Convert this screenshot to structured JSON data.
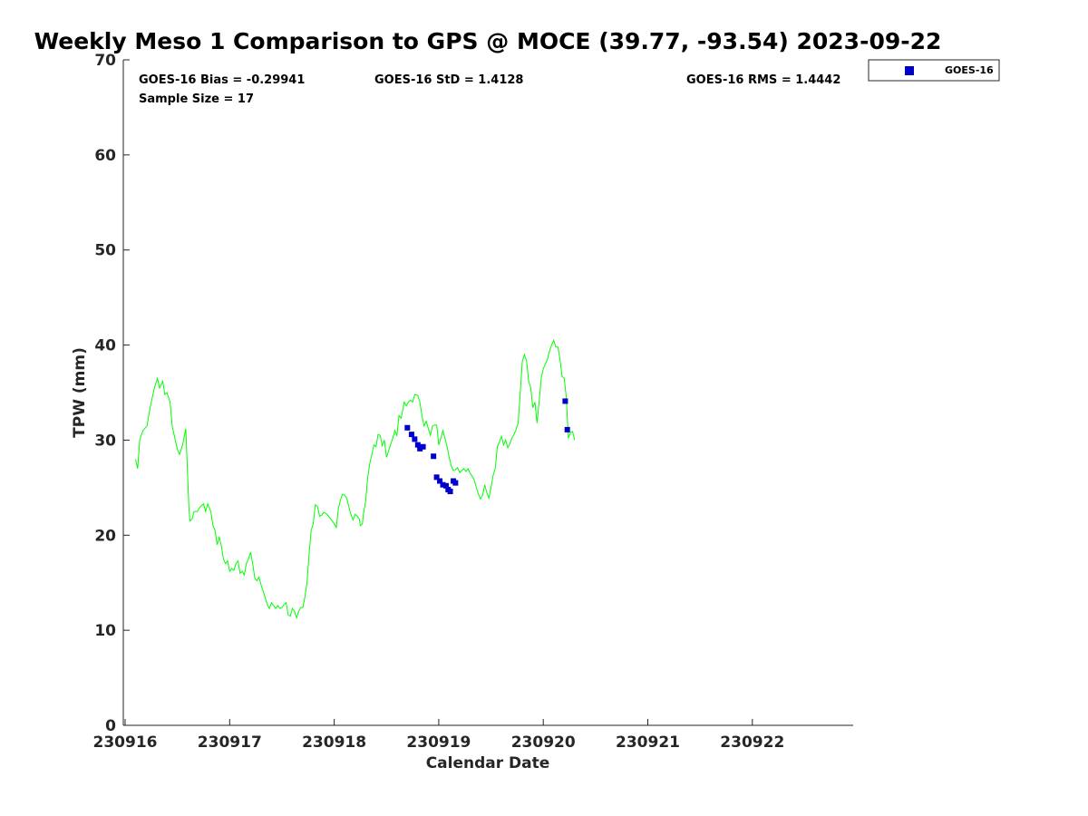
{
  "chart_data": {
    "type": "scatter",
    "title": "Weekly Meso 1 Comparison to GPS @ MOCE (39.77, -93.54) 2023-09-22",
    "xlabel": "Calendar Date",
    "ylabel": "TPW (mm)",
    "xlim": [
      230916,
      230923
    ],
    "ylim": [
      0,
      70
    ],
    "x_ticks": [
      "230916",
      "230917",
      "230918",
      "230919",
      "230920",
      "230921",
      "230922"
    ],
    "y_ticks": [
      "0",
      "10",
      "20",
      "30",
      "40",
      "50",
      "60",
      "70"
    ],
    "grid": false,
    "legend_position": "top-right outside",
    "stats": {
      "bias": "GOES-16 Bias = -0.29941",
      "std": "GOES-16 StD = 1.4128",
      "rms": "GOES-16 RMS = 1.4442",
      "sample": "Sample Size = 17"
    },
    "series": [
      {
        "name": "GPS",
        "kind": "line",
        "color": "#00ff00",
        "points": [
          [
            0.1,
            28.0
          ],
          [
            0.12,
            27.0
          ],
          [
            0.14,
            30.0
          ],
          [
            0.17,
            31.0
          ],
          [
            0.21,
            31.5
          ],
          [
            0.24,
            33.5
          ],
          [
            0.28,
            35.5
          ],
          [
            0.31,
            36.5
          ],
          [
            0.33,
            35.5
          ],
          [
            0.36,
            36.2
          ],
          [
            0.38,
            34.8
          ],
          [
            0.4,
            35.0
          ],
          [
            0.43,
            34.0
          ],
          [
            0.45,
            31.5
          ],
          [
            0.48,
            30.0
          ],
          [
            0.5,
            29.0
          ],
          [
            0.52,
            28.5
          ],
          [
            0.55,
            29.5
          ],
          [
            0.58,
            31.2
          ],
          [
            0.61,
            23.0
          ],
          [
            0.62,
            21.5
          ],
          [
            0.64,
            21.7
          ],
          [
            0.66,
            22.5
          ],
          [
            0.69,
            22.5
          ],
          [
            0.72,
            23.0
          ],
          [
            0.75,
            23.3
          ],
          [
            0.77,
            22.5
          ],
          [
            0.79,
            23.3
          ],
          [
            0.82,
            22.5
          ],
          [
            0.84,
            21.0
          ],
          [
            0.86,
            20.5
          ],
          [
            0.88,
            19.0
          ],
          [
            0.9,
            19.8
          ],
          [
            0.92,
            18.9
          ],
          [
            0.94,
            17.5
          ],
          [
            0.96,
            17.0
          ],
          [
            0.98,
            17.3
          ],
          [
            1.0,
            16.2
          ],
          [
            1.02,
            16.5
          ],
          [
            1.04,
            16.3
          ],
          [
            1.06,
            17.0
          ],
          [
            1.08,
            17.3
          ],
          [
            1.1,
            16.0
          ],
          [
            1.12,
            16.2
          ],
          [
            1.14,
            15.8
          ],
          [
            1.16,
            17.0
          ],
          [
            1.18,
            17.5
          ],
          [
            1.2,
            18.2
          ],
          [
            1.22,
            17.0
          ],
          [
            1.24,
            15.5
          ],
          [
            1.26,
            15.2
          ],
          [
            1.28,
            15.6
          ],
          [
            1.3,
            14.8
          ],
          [
            1.33,
            13.8
          ],
          [
            1.36,
            12.7
          ],
          [
            1.38,
            12.3
          ],
          [
            1.4,
            12.9
          ],
          [
            1.42,
            12.6
          ],
          [
            1.44,
            12.3
          ],
          [
            1.46,
            12.6
          ],
          [
            1.48,
            12.3
          ],
          [
            1.5,
            12.4
          ],
          [
            1.52,
            12.7
          ],
          [
            1.54,
            12.9
          ],
          [
            1.56,
            11.6
          ],
          [
            1.58,
            11.5
          ],
          [
            1.6,
            12.3
          ],
          [
            1.62,
            12.0
          ],
          [
            1.64,
            11.3
          ],
          [
            1.66,
            12.0
          ],
          [
            1.68,
            12.4
          ],
          [
            1.7,
            12.4
          ],
          [
            1.72,
            13.5
          ],
          [
            1.74,
            15.0
          ],
          [
            1.76,
            18.0
          ],
          [
            1.78,
            20.5
          ],
          [
            1.8,
            21.2
          ],
          [
            1.82,
            23.2
          ],
          [
            1.84,
            23.0
          ],
          [
            1.86,
            22.0
          ],
          [
            1.88,
            22.1
          ],
          [
            1.9,
            22.4
          ],
          [
            1.92,
            22.3
          ],
          [
            1.94,
            22.1
          ],
          [
            1.96,
            21.8
          ],
          [
            1.98,
            21.5
          ],
          [
            2.0,
            21.2
          ],
          [
            2.02,
            20.8
          ],
          [
            2.04,
            22.8
          ],
          [
            2.06,
            23.7
          ],
          [
            2.08,
            24.3
          ],
          [
            2.1,
            24.2
          ],
          [
            2.12,
            23.9
          ],
          [
            2.14,
            23.0
          ],
          [
            2.16,
            22.2
          ],
          [
            2.18,
            21.6
          ],
          [
            2.2,
            22.2
          ],
          [
            2.22,
            22.0
          ],
          [
            2.24,
            21.7
          ],
          [
            2.25,
            21.0
          ],
          [
            2.27,
            21.2
          ],
          [
            2.28,
            22.3
          ],
          [
            2.3,
            23.5
          ],
          [
            2.32,
            26.0
          ],
          [
            2.34,
            27.5
          ],
          [
            2.36,
            28.5
          ],
          [
            2.38,
            29.5
          ],
          [
            2.4,
            29.3
          ],
          [
            2.42,
            30.6
          ],
          [
            2.44,
            30.5
          ],
          [
            2.46,
            29.4
          ],
          [
            2.48,
            30.0
          ],
          [
            2.5,
            28.2
          ],
          [
            2.53,
            29.2
          ],
          [
            2.56,
            30.2
          ],
          [
            2.58,
            31.0
          ],
          [
            2.6,
            30.5
          ],
          [
            2.62,
            32.6
          ],
          [
            2.64,
            32.3
          ],
          [
            2.67,
            34.0
          ],
          [
            2.69,
            33.6
          ],
          [
            2.71,
            34.0
          ],
          [
            2.73,
            34.2
          ],
          [
            2.75,
            34.0
          ],
          [
            2.77,
            34.8
          ],
          [
            2.8,
            34.7
          ],
          [
            2.82,
            34.0
          ],
          [
            2.84,
            32.5
          ],
          [
            2.86,
            31.5
          ],
          [
            2.88,
            32.0
          ],
          [
            2.9,
            31.2
          ],
          [
            2.92,
            30.5
          ],
          [
            2.94,
            31.5
          ],
          [
            2.96,
            31.6
          ],
          [
            2.98,
            31.6
          ],
          [
            3.0,
            29.5
          ],
          [
            3.02,
            30.2
          ],
          [
            3.04,
            31.0
          ],
          [
            3.06,
            30.2
          ],
          [
            3.08,
            29.3
          ],
          [
            3.1,
            28.2
          ],
          [
            3.12,
            27.3
          ],
          [
            3.14,
            26.8
          ],
          [
            3.16,
            26.9
          ],
          [
            3.18,
            27.1
          ],
          [
            3.2,
            26.6
          ],
          [
            3.22,
            26.8
          ],
          [
            3.24,
            27.0
          ],
          [
            3.26,
            26.7
          ],
          [
            3.28,
            27.0
          ],
          [
            3.3,
            26.5
          ],
          [
            3.32,
            26.2
          ],
          [
            3.34,
            25.8
          ],
          [
            3.36,
            25.0
          ],
          [
            3.38,
            24.3
          ],
          [
            3.4,
            23.8
          ],
          [
            3.42,
            24.2
          ],
          [
            3.44,
            25.3
          ],
          [
            3.46,
            24.5
          ],
          [
            3.48,
            23.9
          ],
          [
            3.5,
            25.0
          ],
          [
            3.52,
            26.3
          ],
          [
            3.54,
            27.0
          ],
          [
            3.56,
            29.3
          ],
          [
            3.58,
            29.8
          ],
          [
            3.6,
            30.4
          ],
          [
            3.62,
            29.5
          ],
          [
            3.64,
            30.0
          ],
          [
            3.66,
            29.2
          ],
          [
            3.68,
            29.6
          ],
          [
            3.7,
            30.2
          ],
          [
            3.72,
            30.6
          ],
          [
            3.74,
            31.1
          ],
          [
            3.76,
            31.8
          ],
          [
            3.78,
            35.0
          ],
          [
            3.8,
            38.3
          ],
          [
            3.82,
            39.0
          ],
          [
            3.84,
            38.3
          ],
          [
            3.86,
            36.2
          ],
          [
            3.88,
            35.5
          ],
          [
            3.9,
            33.4
          ],
          [
            3.92,
            34.0
          ],
          [
            3.94,
            31.8
          ],
          [
            3.96,
            34.0
          ],
          [
            3.98,
            36.5
          ],
          [
            4.0,
            37.5
          ],
          [
            4.02,
            38.0
          ],
          [
            4.04,
            38.5
          ],
          [
            4.06,
            39.4
          ],
          [
            4.08,
            40.0
          ],
          [
            4.1,
            40.5
          ],
          [
            4.12,
            39.8
          ],
          [
            4.14,
            39.8
          ],
          [
            4.16,
            38.5
          ],
          [
            4.18,
            36.7
          ],
          [
            4.2,
            36.5
          ],
          [
            4.22,
            34.5
          ],
          [
            4.24,
            30.2
          ],
          [
            4.26,
            30.8
          ],
          [
            4.28,
            30.9
          ],
          [
            4.3,
            30.0
          ]
        ]
      },
      {
        "name": "GOES-16",
        "kind": "scatter",
        "color": "#0000cd",
        "points": [
          [
            2.7,
            31.3
          ],
          [
            2.74,
            30.6
          ],
          [
            2.77,
            30.1
          ],
          [
            2.8,
            29.5
          ],
          [
            2.82,
            29.1
          ],
          [
            2.85,
            29.3
          ],
          [
            2.95,
            28.3
          ],
          [
            2.98,
            26.1
          ],
          [
            3.01,
            25.7
          ],
          [
            3.04,
            25.3
          ],
          [
            3.07,
            25.2
          ],
          [
            3.09,
            24.8
          ],
          [
            3.11,
            24.6
          ],
          [
            3.14,
            25.7
          ],
          [
            3.16,
            25.5
          ],
          [
            4.21,
            34.1
          ],
          [
            4.23,
            31.1
          ]
        ]
      }
    ]
  },
  "legend": {
    "label": "GOES-16",
    "color": "#0000cd"
  }
}
